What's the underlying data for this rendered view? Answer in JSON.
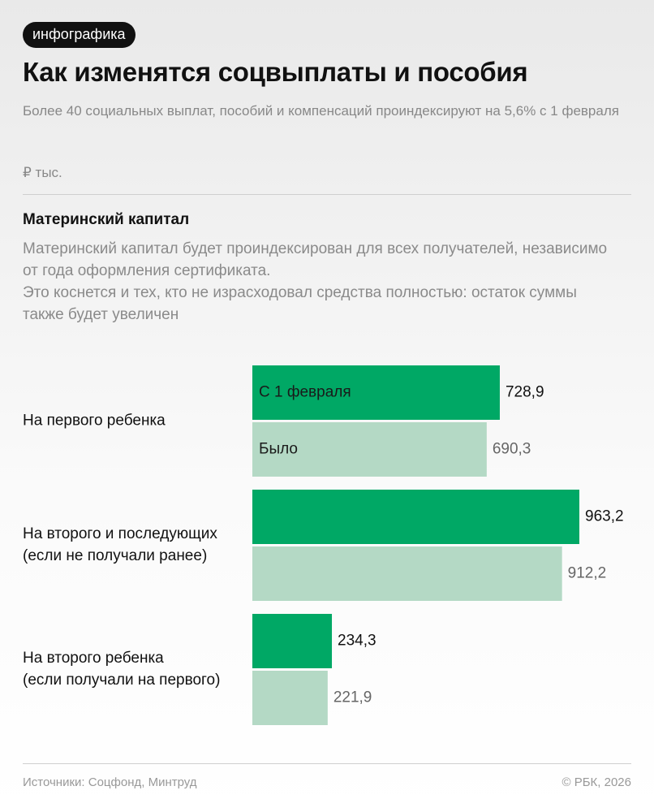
{
  "badge": "инфографика",
  "title": "Как изменятся соцвыплаты и пособия",
  "subtitle": "Более 40 социальных выплат, пособий и компенсаций проиндексируют на 5,6% с 1 февраля",
  "unit": "₽ тыс.",
  "chart_data": {
    "type": "bar",
    "orientation": "horizontal",
    "title": "Материнский капитал",
    "description": [
      "Материнский капитал будет проиндексирован для всех получателей, независимо от года оформления сертификата.",
      "Это коснется и тех, кто не израсходовал средства полностью: остаток суммы также будет увеличен"
    ],
    "categories": [
      [
        "На первого ребенка"
      ],
      [
        "На второго и последующих",
        "(если не получали ранее)"
      ],
      [
        "На второго ребенка",
        "(если получали на первого)"
      ]
    ],
    "series": [
      {
        "name": "С 1 февраля",
        "color": "#00a865",
        "values": [
          728.9,
          963.2,
          234.3
        ],
        "value_labels": [
          "728,9",
          "963,2",
          "234,3"
        ]
      },
      {
        "name": "Было",
        "color": "#b4d9c5",
        "values": [
          690.3,
          912.2,
          221.9
        ],
        "value_labels": [
          "690,3",
          "912,2",
          "221,9"
        ]
      }
    ]
  },
  "footer": {
    "source": "Источники: Соцфонд, Минтруд",
    "copyright": "© РБК, 2026"
  }
}
